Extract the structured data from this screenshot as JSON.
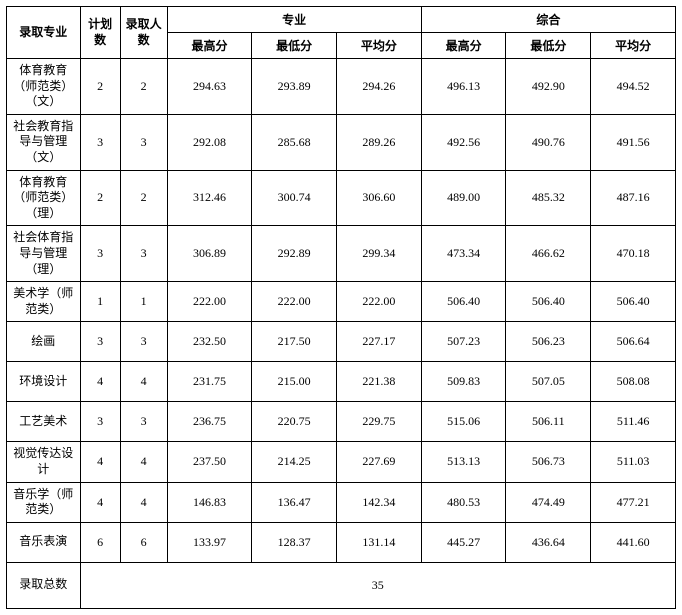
{
  "headers": {
    "major": "录取专业",
    "plan": "计划数",
    "admit": "录取人数",
    "professional": "专业",
    "comprehensive": "综合",
    "highest": "最高分",
    "lowest": "最低分",
    "average": "平均分"
  },
  "rows": [
    {
      "major": "体育教育（师范类）（文）",
      "plan": "2",
      "admit": "2",
      "p_high": "294.63",
      "p_low": "293.89",
      "p_avg": "294.26",
      "c_high": "496.13",
      "c_low": "492.90",
      "c_avg": "494.52"
    },
    {
      "major": "社会教育指导与管理（文）",
      "plan": "3",
      "admit": "3",
      "p_high": "292.08",
      "p_low": "285.68",
      "p_avg": "289.26",
      "c_high": "492.56",
      "c_low": "490.76",
      "c_avg": "491.56"
    },
    {
      "major": "体育教育（师范类）（理）",
      "plan": "2",
      "admit": "2",
      "p_high": "312.46",
      "p_low": "300.74",
      "p_avg": "306.60",
      "c_high": "489.00",
      "c_low": "485.32",
      "c_avg": "487.16"
    },
    {
      "major": "社会体育指导与管理（理）",
      "plan": "3",
      "admit": "3",
      "p_high": "306.89",
      "p_low": "292.89",
      "p_avg": "299.34",
      "c_high": "473.34",
      "c_low": "466.62",
      "c_avg": "470.18"
    },
    {
      "major": "美术学（师范类）",
      "plan": "1",
      "admit": "1",
      "p_high": "222.00",
      "p_low": "222.00",
      "p_avg": "222.00",
      "c_high": "506.40",
      "c_low": "506.40",
      "c_avg": "506.40"
    },
    {
      "major": "绘画",
      "plan": "3",
      "admit": "3",
      "p_high": "232.50",
      "p_low": "217.50",
      "p_avg": "227.17",
      "c_high": "507.23",
      "c_low": "506.23",
      "c_avg": "506.64"
    },
    {
      "major": "环境设计",
      "plan": "4",
      "admit": "4",
      "p_high": "231.75",
      "p_low": "215.00",
      "p_avg": "221.38",
      "c_high": "509.83",
      "c_low": "507.05",
      "c_avg": "508.08"
    },
    {
      "major": "工艺美术",
      "plan": "3",
      "admit": "3",
      "p_high": "236.75",
      "p_low": "220.75",
      "p_avg": "229.75",
      "c_high": "515.06",
      "c_low": "506.11",
      "c_avg": "511.46"
    },
    {
      "major": "视觉传达设计",
      "plan": "4",
      "admit": "4",
      "p_high": "237.50",
      "p_low": "214.25",
      "p_avg": "227.69",
      "c_high": "513.13",
      "c_low": "506.73",
      "c_avg": "511.03"
    },
    {
      "major": "音乐学（师范类）",
      "plan": "4",
      "admit": "4",
      "p_high": "146.83",
      "p_low": "136.47",
      "p_avg": "142.34",
      "c_high": "480.53",
      "c_low": "474.49",
      "c_avg": "477.21"
    },
    {
      "major": "音乐表演",
      "plan": "6",
      "admit": "6",
      "p_high": "133.97",
      "p_low": "128.37",
      "p_avg": "131.14",
      "c_high": "445.27",
      "c_low": "436.64",
      "c_avg": "441.60"
    }
  ],
  "footer": {
    "label": "录取总数",
    "value": "35"
  }
}
